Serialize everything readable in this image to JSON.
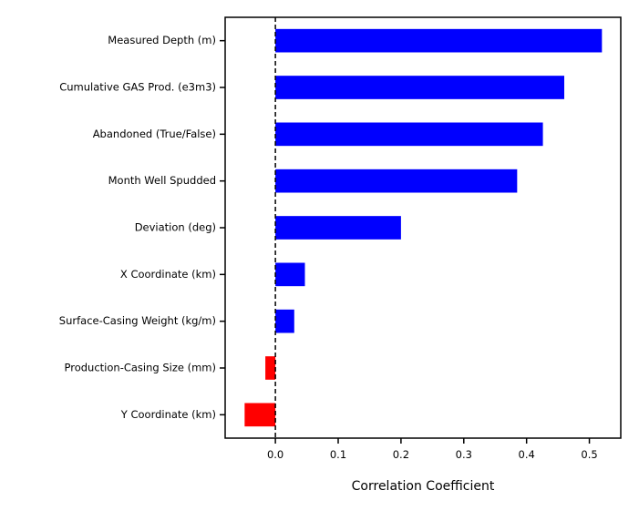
{
  "chart_data": {
    "type": "bar",
    "orientation": "horizontal",
    "title": "",
    "xlabel": "Correlation Coefficient",
    "ylabel": "",
    "xlim": [
      -0.08,
      0.55
    ],
    "xticks": [
      0.0,
      0.1,
      0.2,
      0.3,
      0.4,
      0.5
    ],
    "xtick_labels": [
      "0.0",
      "0.1",
      "0.2",
      "0.3",
      "0.4",
      "0.5"
    ],
    "categories": [
      "Measured Depth (m)",
      "Cumulative GAS Prod. (e3m3)",
      "Abandoned (True/False)",
      "Month Well Spudded",
      "Deviation (deg)",
      "X Coordinate (km)",
      "Surface-Casing Weight (kg/m)",
      "Production-Casing Size (mm)",
      "Y Coordinate (km)"
    ],
    "values": [
      0.52,
      0.46,
      0.426,
      0.385,
      0.2,
      0.047,
      0.03,
      -0.016,
      -0.049
    ],
    "positive_color": "#0000ff",
    "negative_color": "#ff0000",
    "reference_line": {
      "x": 0,
      "style": "dashed",
      "color": "#000000"
    },
    "grid": false,
    "legend": "none"
  }
}
